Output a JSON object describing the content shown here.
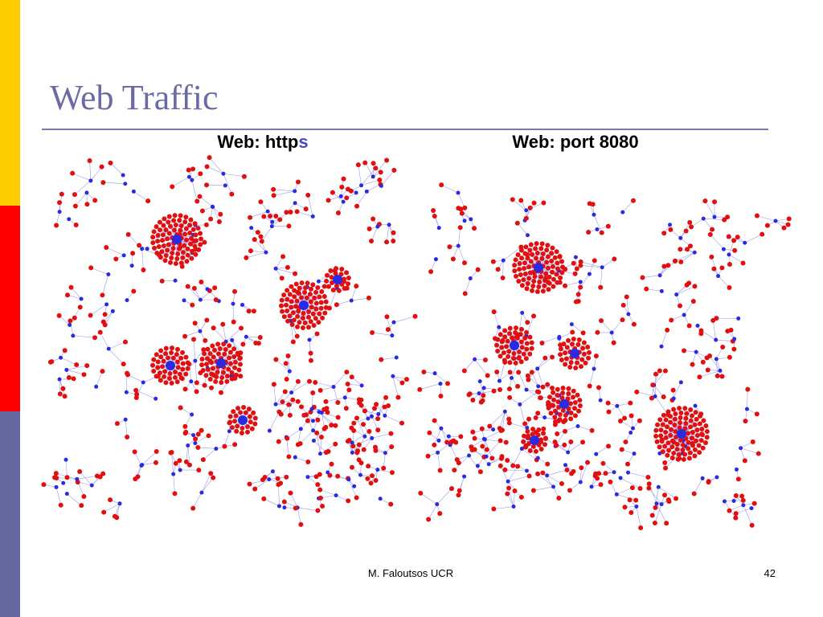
{
  "slide": {
    "title": "Web Traffic",
    "left_caption": {
      "text": "Web: http",
      "highlight": "s"
    },
    "right_caption": {
      "text": "Web: port 8080"
    },
    "footer": "M. Faloutsos UCR",
    "page_number": "42"
  }
}
